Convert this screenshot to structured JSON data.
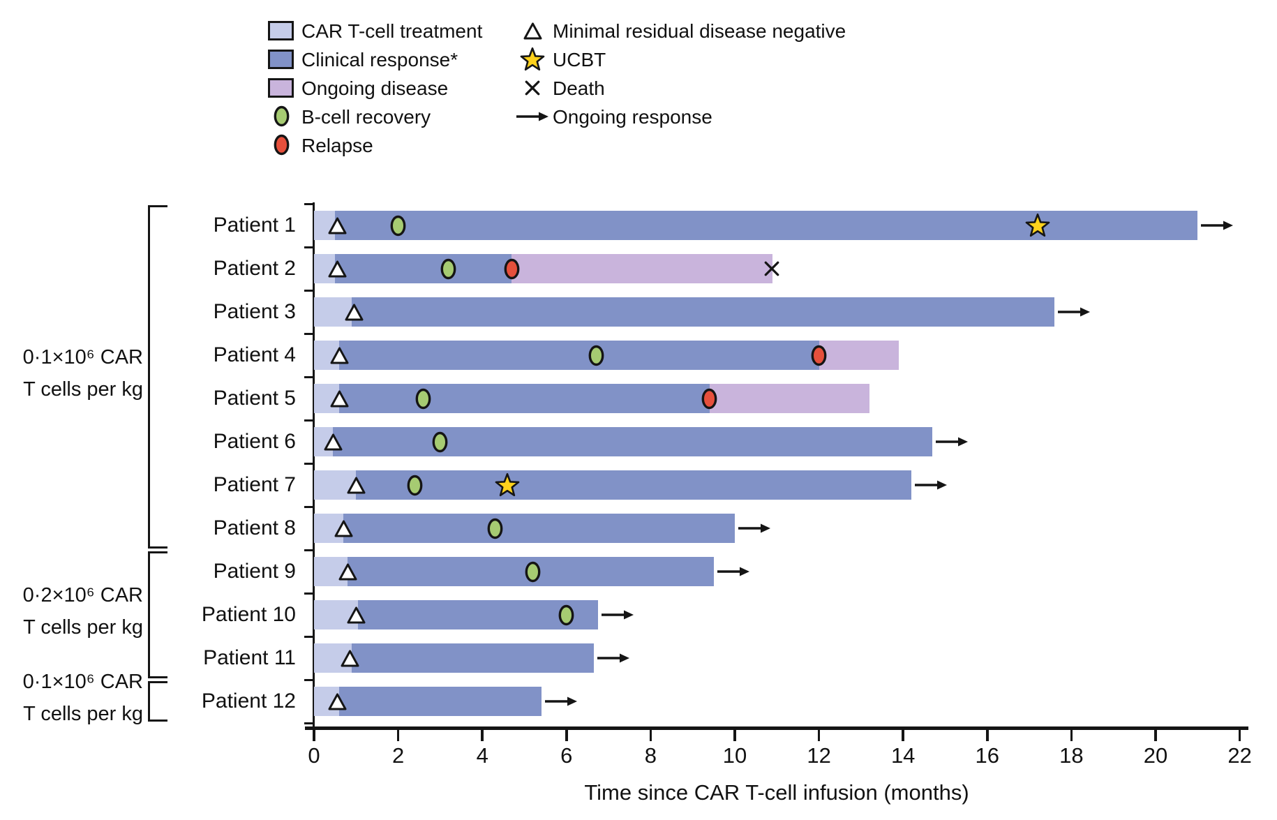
{
  "legend": {
    "column1": [
      {
        "kind": "treatment",
        "label": "CAR T-cell treatment"
      },
      {
        "kind": "response",
        "label": "Clinical response*"
      },
      {
        "kind": "disease",
        "label": "Ongoing disease"
      },
      {
        "kind": "bcell",
        "label": "B-cell recovery"
      },
      {
        "kind": "relapse",
        "label": "Relapse"
      }
    ],
    "column2": [
      {
        "kind": "mrd",
        "label": "Minimal residual disease negative"
      },
      {
        "kind": "ucbt",
        "label": "UCBT"
      },
      {
        "kind": "death",
        "label": "Death"
      },
      {
        "kind": "arrow",
        "label": "Ongoing response"
      }
    ]
  },
  "colors": {
    "treatment": "#c5cce9",
    "response": "#8192c7",
    "disease": "#c9b4dc",
    "bcell": "#a6cb72",
    "relapse": "#e6503c",
    "ucbt": "#ffd21c",
    "mrd_fill": "#ffffff",
    "stroke": "#151515"
  },
  "chart_data": {
    "type": "bar",
    "subtype": "swimmer-timeline",
    "xlabel": "Time since CAR T-cell infusion (months)",
    "xlim": [
      0,
      22
    ],
    "x_ticks": [
      0,
      2,
      4,
      6,
      8,
      10,
      12,
      14,
      16,
      18,
      20,
      22
    ],
    "legend_position": "top",
    "groups": [
      {
        "lines": [
          "0·1×10⁶ CAR",
          "T cells per kg"
        ],
        "from": 1,
        "to": 8
      },
      {
        "lines": [
          "0·2×10⁶ CAR",
          "T cells per kg"
        ],
        "from": 9,
        "to": 11
      },
      {
        "lines": [
          "0·1×10⁶ CAR",
          "T cells per kg"
        ],
        "from": 12,
        "to": 12
      }
    ],
    "patients": [
      {
        "name": "Patient 1",
        "segments": [
          {
            "kind": "treatment",
            "start": 0,
            "end": 0.5
          },
          {
            "kind": "response",
            "start": 0.5,
            "end": 21.0
          }
        ],
        "markers": [
          {
            "kind": "mrd",
            "t": 0.55
          },
          {
            "kind": "bcell",
            "t": 2.0
          },
          {
            "kind": "ucbt",
            "t": 17.2
          }
        ],
        "end_event": "arrow"
      },
      {
        "name": "Patient 2",
        "segments": [
          {
            "kind": "treatment",
            "start": 0,
            "end": 0.5
          },
          {
            "kind": "response",
            "start": 0.5,
            "end": 4.7
          },
          {
            "kind": "disease",
            "start": 4.7,
            "end": 10.9
          }
        ],
        "markers": [
          {
            "kind": "mrd",
            "t": 0.55
          },
          {
            "kind": "bcell",
            "t": 3.2
          },
          {
            "kind": "relapse",
            "t": 4.7
          }
        ],
        "end_event": "death"
      },
      {
        "name": "Patient 3",
        "segments": [
          {
            "kind": "treatment",
            "start": 0,
            "end": 0.9
          },
          {
            "kind": "response",
            "start": 0.9,
            "end": 17.6
          }
        ],
        "markers": [
          {
            "kind": "mrd",
            "t": 0.95
          }
        ],
        "end_event": "arrow"
      },
      {
        "name": "Patient 4",
        "segments": [
          {
            "kind": "treatment",
            "start": 0,
            "end": 0.6
          },
          {
            "kind": "response",
            "start": 0.6,
            "end": 12.0
          },
          {
            "kind": "disease",
            "start": 12.0,
            "end": 13.9
          }
        ],
        "markers": [
          {
            "kind": "mrd",
            "t": 0.6
          },
          {
            "kind": "bcell",
            "t": 6.7
          },
          {
            "kind": "relapse",
            "t": 12.0
          }
        ],
        "end_event": null
      },
      {
        "name": "Patient 5",
        "segments": [
          {
            "kind": "treatment",
            "start": 0,
            "end": 0.6
          },
          {
            "kind": "response",
            "start": 0.6,
            "end": 9.4
          },
          {
            "kind": "disease",
            "start": 9.4,
            "end": 13.2
          }
        ],
        "markers": [
          {
            "kind": "mrd",
            "t": 0.6
          },
          {
            "kind": "bcell",
            "t": 2.6
          },
          {
            "kind": "relapse",
            "t": 9.4
          }
        ],
        "end_event": null
      },
      {
        "name": "Patient 6",
        "segments": [
          {
            "kind": "treatment",
            "start": 0,
            "end": 0.45
          },
          {
            "kind": "response",
            "start": 0.45,
            "end": 14.7
          }
        ],
        "markers": [
          {
            "kind": "mrd",
            "t": 0.45
          },
          {
            "kind": "bcell",
            "t": 3.0
          }
        ],
        "end_event": "arrow"
      },
      {
        "name": "Patient 7",
        "segments": [
          {
            "kind": "treatment",
            "start": 0,
            "end": 1.0
          },
          {
            "kind": "response",
            "start": 1.0,
            "end": 14.2
          }
        ],
        "markers": [
          {
            "kind": "mrd",
            "t": 1.0
          },
          {
            "kind": "bcell",
            "t": 2.4
          },
          {
            "kind": "ucbt",
            "t": 4.6
          }
        ],
        "end_event": "arrow"
      },
      {
        "name": "Patient 8",
        "segments": [
          {
            "kind": "treatment",
            "start": 0,
            "end": 0.7
          },
          {
            "kind": "response",
            "start": 0.7,
            "end": 10.0
          }
        ],
        "markers": [
          {
            "kind": "mrd",
            "t": 0.7
          },
          {
            "kind": "bcell",
            "t": 4.3
          }
        ],
        "end_event": "arrow"
      },
      {
        "name": "Patient 9",
        "segments": [
          {
            "kind": "treatment",
            "start": 0,
            "end": 0.8
          },
          {
            "kind": "response",
            "start": 0.8,
            "end": 9.5
          }
        ],
        "markers": [
          {
            "kind": "mrd",
            "t": 0.8
          },
          {
            "kind": "bcell",
            "t": 5.2
          }
        ],
        "end_event": "arrow"
      },
      {
        "name": "Patient 10",
        "segments": [
          {
            "kind": "treatment",
            "start": 0,
            "end": 1.05
          },
          {
            "kind": "response",
            "start": 1.05,
            "end": 6.75
          }
        ],
        "markers": [
          {
            "kind": "mrd",
            "t": 1.0
          },
          {
            "kind": "bcell",
            "t": 6.0
          }
        ],
        "end_event": "arrow"
      },
      {
        "name": "Patient 11",
        "segments": [
          {
            "kind": "treatment",
            "start": 0,
            "end": 0.9
          },
          {
            "kind": "response",
            "start": 0.9,
            "end": 6.65
          }
        ],
        "markers": [
          {
            "kind": "mrd",
            "t": 0.85
          }
        ],
        "end_event": "arrow"
      },
      {
        "name": "Patient 12",
        "segments": [
          {
            "kind": "treatment",
            "start": 0,
            "end": 0.6
          },
          {
            "kind": "response",
            "start": 0.6,
            "end": 5.4
          }
        ],
        "markers": [
          {
            "kind": "mrd",
            "t": 0.55
          }
        ],
        "end_event": "arrow"
      }
    ]
  }
}
